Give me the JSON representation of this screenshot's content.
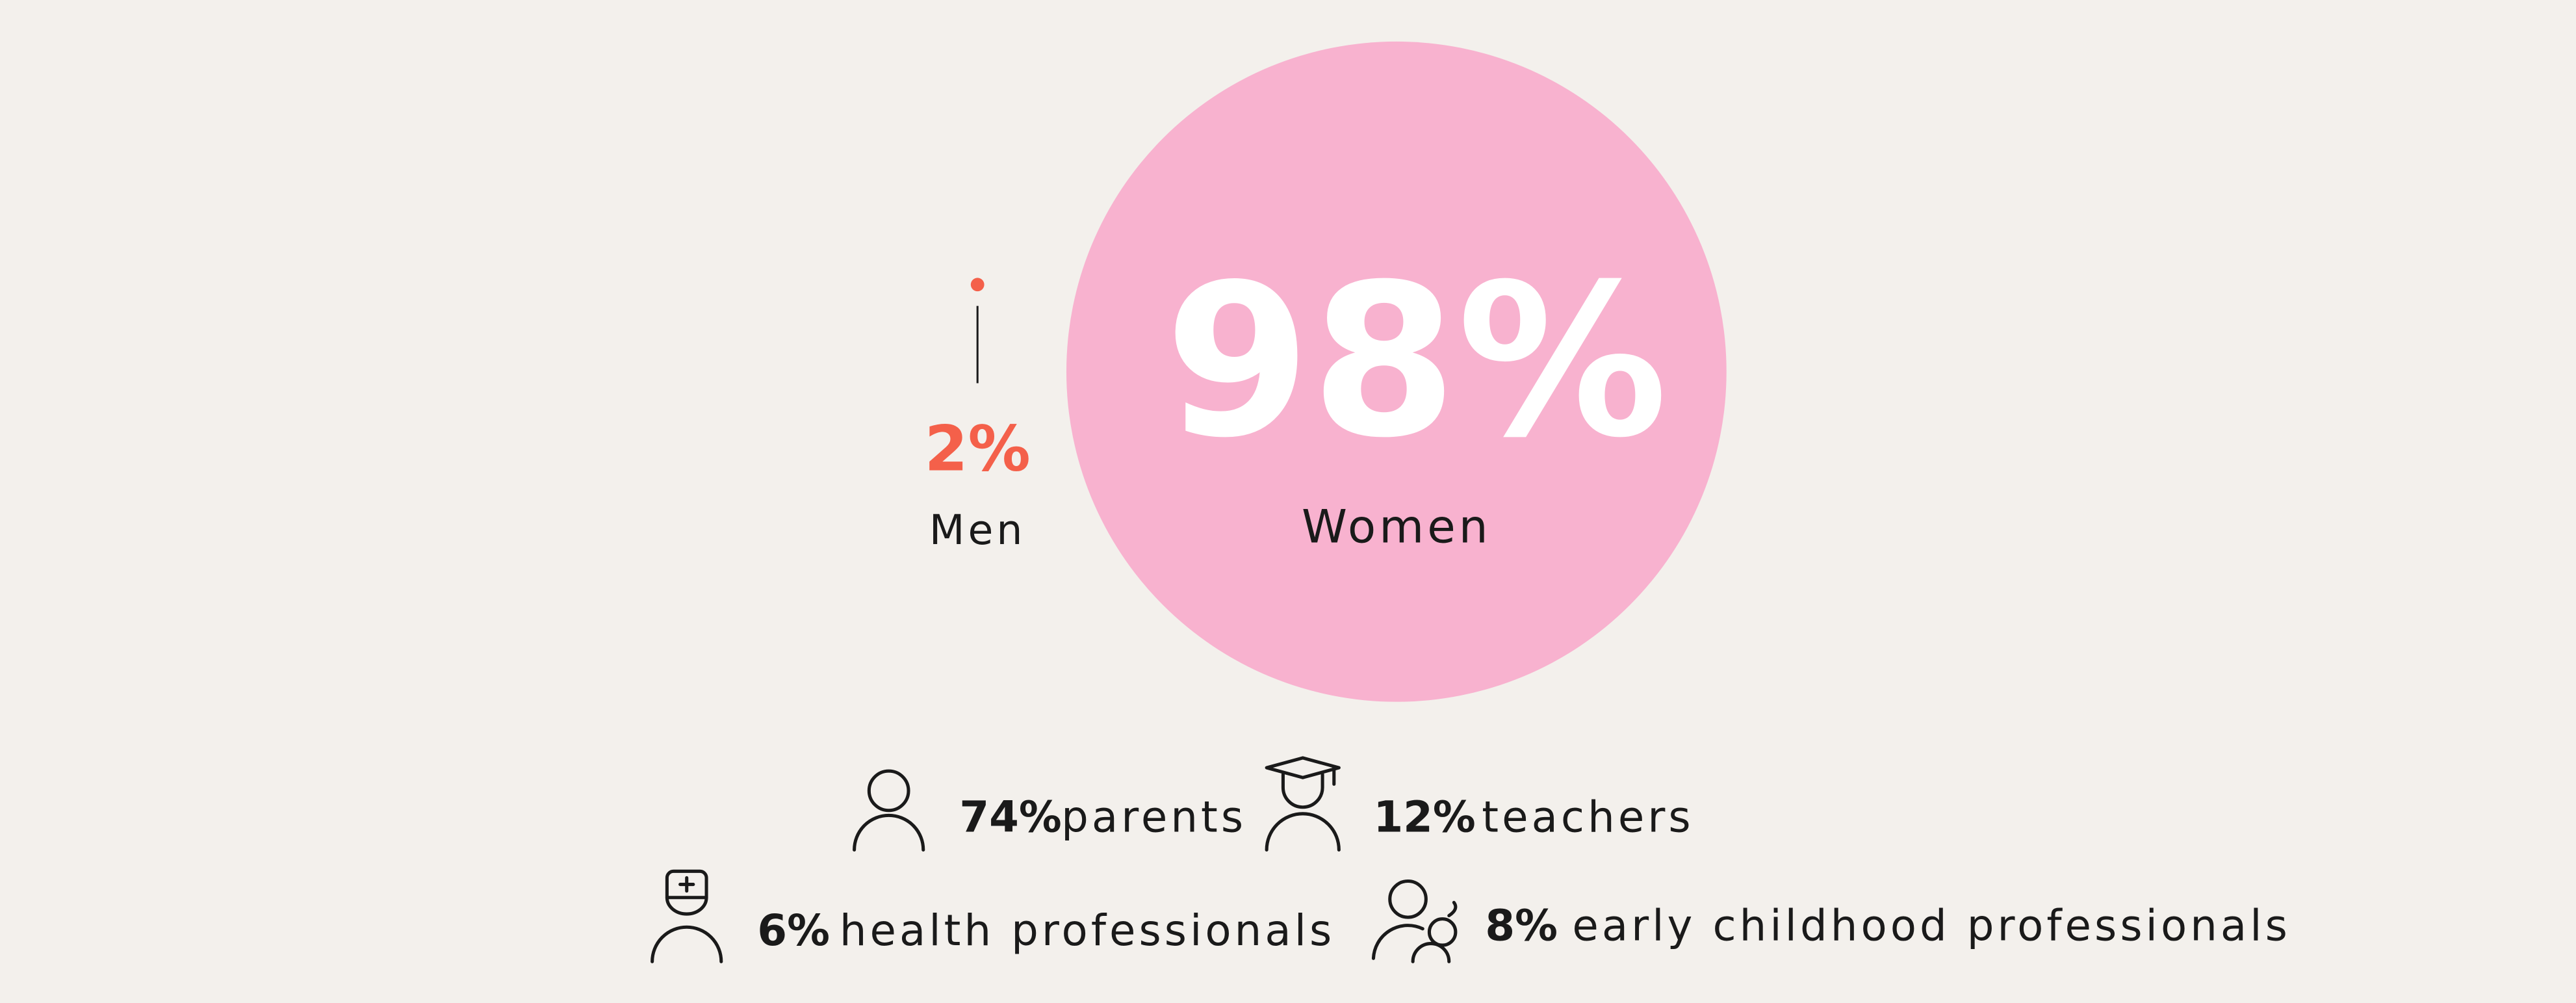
{
  "gender": [
    {
      "name": "Men",
      "value": 2,
      "value_label": "2%",
      "color": "#f4604a"
    },
    {
      "name": "Women",
      "value": 98,
      "value_label": "98%",
      "color": "#f8b2cf"
    }
  ],
  "roles": [
    {
      "percent": "74%",
      "label": "parents"
    },
    {
      "percent": "12%",
      "label": "teachers"
    },
    {
      "percent": "6%",
      "label": "health professionals"
    },
    {
      "percent": "8%",
      "label": "early childhood professionals"
    }
  ]
}
